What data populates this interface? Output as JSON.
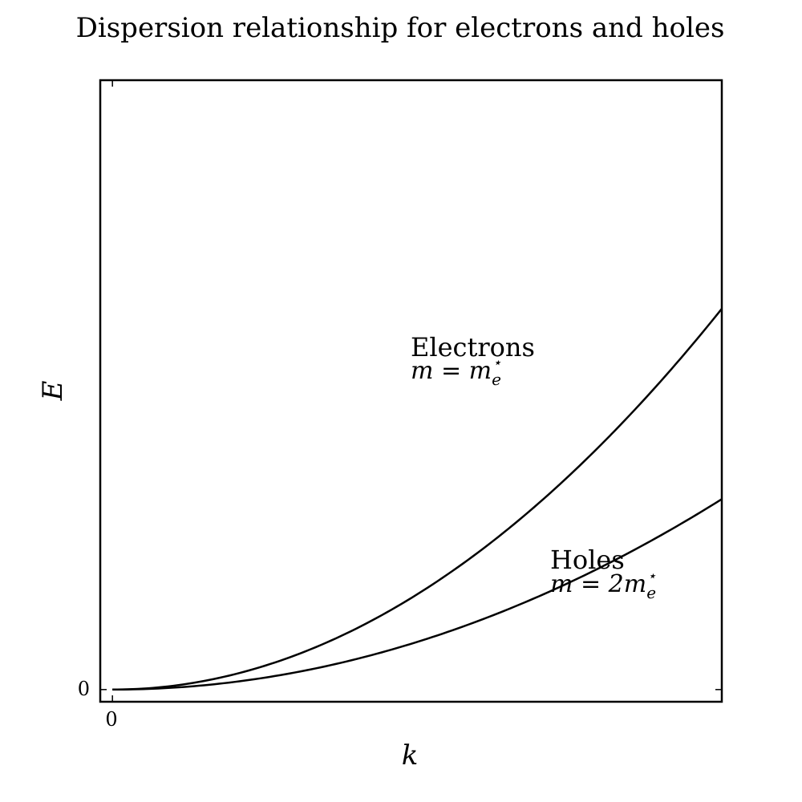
{
  "chart_data": {
    "type": "line",
    "title": "Dispersion relationship for electrons and holes",
    "xlabel": "k",
    "ylabel": "E",
    "x_ticks": [
      "0"
    ],
    "y_ticks": [
      "0"
    ],
    "xlim": [
      -0.05,
      2.5
    ],
    "ylim": [
      -0.1,
      5
    ],
    "grid": false,
    "series": [
      {
        "name": "Electrons",
        "mass_label": "m = m_e*",
        "x": [
          0,
          0.25,
          0.5,
          0.75,
          1.0,
          1.25,
          1.5,
          1.75,
          2.0,
          2.25,
          2.5
        ],
        "y": [
          0,
          0.0312,
          0.125,
          0.281,
          0.5,
          0.781,
          1.125,
          1.531,
          2.0,
          2.531,
          3.125
        ]
      },
      {
        "name": "Holes",
        "mass_label": "m = 2m_e*",
        "x": [
          0,
          0.25,
          0.5,
          0.75,
          1.0,
          1.25,
          1.5,
          1.75,
          2.0,
          2.25,
          2.5
        ],
        "y": [
          0,
          0.0156,
          0.0625,
          0.141,
          0.25,
          0.391,
          0.5625,
          0.766,
          1.0,
          1.266,
          1.5625
        ]
      }
    ],
    "annotations": [
      {
        "name": "Electrons",
        "math_prefix": "m = m",
        "sub": "e",
        "sup": "⋆"
      },
      {
        "name": "Holes",
        "math_prefix": "m = 2m",
        "sub": "e",
        "sup": "⋆"
      }
    ]
  }
}
